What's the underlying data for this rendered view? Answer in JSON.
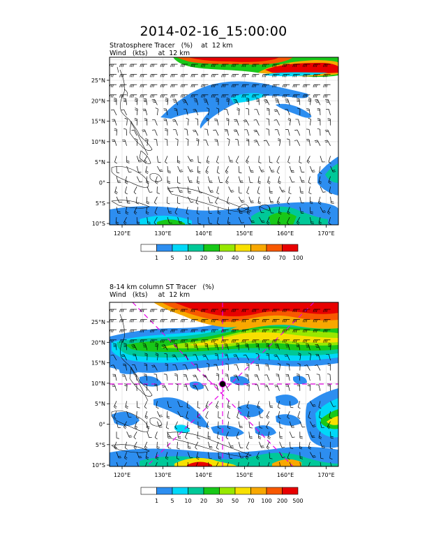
{
  "page": {
    "title": "2014-02-16_15:00:00"
  },
  "panels": [
    {
      "title_line1": "Stratosphere Tracer   (%)    at  12 km",
      "title_line2": "Wind   (kts)     at  12 km",
      "lon_ticks": [
        "120°E",
        "130°E",
        "140°E",
        "150°E",
        "160°E",
        "170°E"
      ],
      "lat_ticks": [
        "25°N",
        "20°N",
        "15°N",
        "10°N",
        "5°N",
        "0°",
        "5°S",
        "10°S"
      ],
      "colorbar": {
        "labels": [
          "1",
          "5",
          "10",
          "20",
          "30",
          "40",
          "50",
          "60",
          "70",
          "100"
        ],
        "colors": [
          "#ffffff",
          "#2d8ef0",
          "#00d8f8",
          "#00c898",
          "#18c818",
          "#98e800",
          "#f8e000",
          "#f8a800",
          "#f85800",
          "#e80000"
        ]
      }
    },
    {
      "title_line1": "8-14 km column ST Tracer   (%)",
      "title_line2": "Wind   (kts)     at  12 km",
      "lon_ticks": [
        "120°E",
        "130°E",
        "140°E",
        "150°E",
        "160°E",
        "170°E"
      ],
      "lat_ticks": [
        "25°N",
        "20°N",
        "15°N",
        "10°N",
        "5°N",
        "0°",
        "5°S",
        "10°S"
      ],
      "colorbar": {
        "labels": [
          "1",
          "5",
          "10",
          "20",
          "30",
          "50",
          "70",
          "100",
          "200",
          "500"
        ],
        "colors": [
          "#ffffff",
          "#2d8ef0",
          "#00d8f8",
          "#00c898",
          "#18c818",
          "#98e800",
          "#f8e000",
          "#f8a800",
          "#f85800",
          "#e80000"
        ]
      }
    }
  ]
}
